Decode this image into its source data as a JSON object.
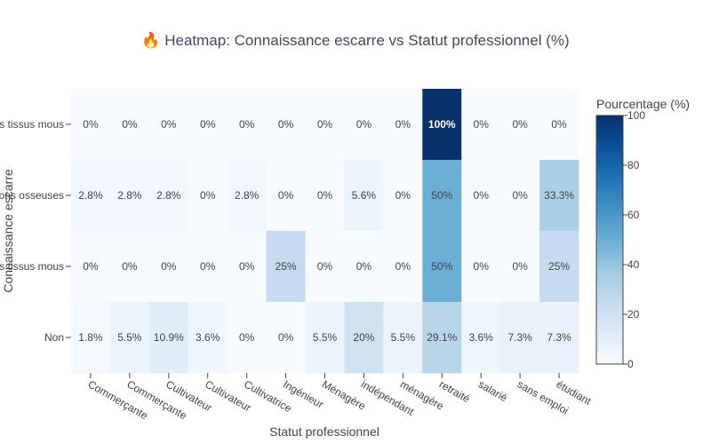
{
  "chart_data": {
    "type": "heatmap",
    "title_icon": "🔥",
    "title": "Heatmap: Connaissance escarre vs Statut professionnel (%)",
    "xlabel": "Statut professionnel",
    "ylabel": "Connaissance escarre",
    "x": [
      "Commerçante",
      "Commerçante",
      "Cultivateur",
      "Cultivateur",
      "Cultivatrice",
      "Ingénieur",
      "Ménagère",
      "indépendant",
      "ménagère",
      "retraité",
      "salarié",
      "sans emploi",
      "étudiant"
    ],
    "y": [
      "lésions des tissus mous",
      "lésions osseuses",
      "lésions des tissus mous",
      "Non"
    ],
    "z": [
      [
        0,
        0,
        0,
        0,
        0,
        0,
        0,
        0,
        0,
        100,
        0,
        0,
        0
      ],
      [
        2.8,
        2.8,
        2.8,
        0,
        2.8,
        0,
        0,
        5.6,
        0,
        50,
        0,
        0,
        33.3
      ],
      [
        0,
        0,
        0,
        0,
        0,
        25,
        0,
        0,
        0,
        50,
        0,
        0,
        25
      ],
      [
        1.8,
        5.5,
        10.9,
        3.6,
        0,
        0,
        5.5,
        20,
        5.5,
        29.1,
        3.6,
        7.3,
        7.3
      ]
    ],
    "text": [
      [
        "0%",
        "0%",
        "0%",
        "0%",
        "0%",
        "0%",
        "0%",
        "0%",
        "0%",
        "100%",
        "0%",
        "0%",
        "0%"
      ],
      [
        "2.8%",
        "2.8%",
        "2.8%",
        "0%",
        "2.8%",
        "0%",
        "0%",
        "5.6%",
        "0%",
        "50%",
        "0%",
        "0%",
        "33.3%"
      ],
      [
        "0%",
        "0%",
        "0%",
        "0%",
        "0%",
        "25%",
        "0%",
        "0%",
        "0%",
        "50%",
        "0%",
        "0%",
        "25%"
      ],
      [
        "1.8%",
        "5.5%",
        "10.9%",
        "3.6%",
        "0%",
        "0%",
        "5.5%",
        "20%",
        "5.5%",
        "29.1%",
        "3.6%",
        "7.3%",
        "7.3%"
      ]
    ],
    "colorscale": "Blues",
    "colorbar": {
      "title": "Pourcentage (%)",
      "range": [
        0,
        100
      ],
      "ticks": [
        0,
        20,
        40,
        60,
        80,
        100
      ]
    }
  }
}
